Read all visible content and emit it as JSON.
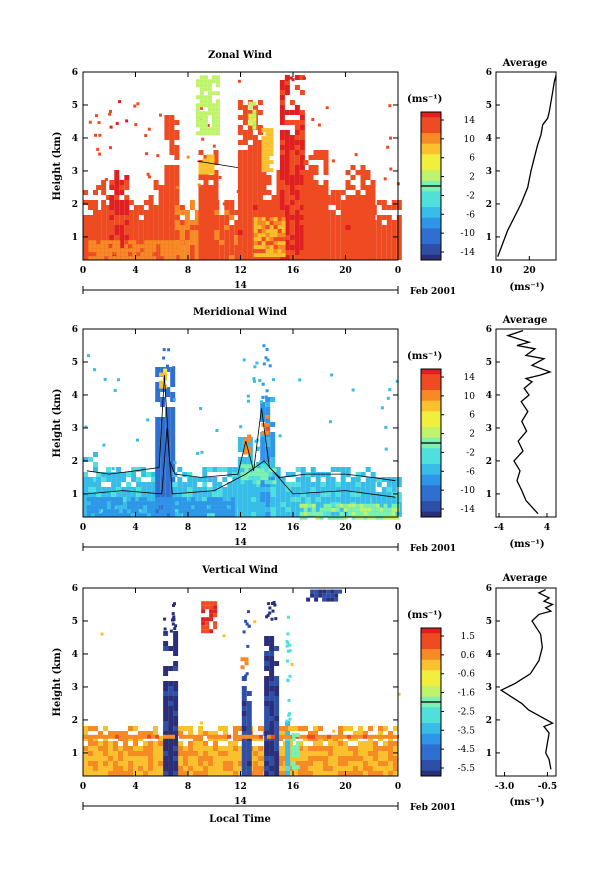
{
  "chart_data": [
    {
      "type": "heatmap",
      "title": "Zonal Wind",
      "ylabel": "Height (km)",
      "xlabel": "",
      "x_ticks": [
        "0",
        "4",
        "8",
        "12",
        "16",
        "20",
        "0"
      ],
      "x_lim": [
        0,
        24
      ],
      "y_ticks": [
        "1",
        "2",
        "3",
        "4",
        "5",
        "6"
      ],
      "y_lim": [
        0.3,
        6.0
      ],
      "date_label": "14",
      "date_suffix": "Feb 2001",
      "colorbar": {
        "unit": "(ms⁻¹)",
        "ticks": [
          "14",
          "10",
          "6",
          "2",
          "-2",
          "-6",
          "-10",
          "-14"
        ],
        "range": [
          -14,
          14
        ]
      },
      "field": {
        "base_value": 11,
        "base_top": 1.8,
        "columns": [
          {
            "x0": 0.0,
            "x1": 1.0,
            "top": 2.3,
            "value": 12
          },
          {
            "x0": 1.0,
            "x1": 2.0,
            "top": 2.6,
            "value": 12
          },
          {
            "x0": 2.0,
            "x1": 3.5,
            "top": 3.0,
            "value": 13
          },
          {
            "x0": 3.5,
            "x1": 5.0,
            "top": 2.1,
            "value": 12
          },
          {
            "x0": 5.0,
            "x1": 6.2,
            "top": 2.7,
            "value": 12
          },
          {
            "x0": 6.2,
            "x1": 7.0,
            "top": 4.6,
            "value": 12
          },
          {
            "x0": 7.0,
            "x1": 8.8,
            "top": 2.2,
            "value": 10
          },
          {
            "x0": 8.8,
            "x1": 10.0,
            "top": 3.6,
            "value": 12
          },
          {
            "x0": 10.0,
            "x1": 11.8,
            "top": 2.0,
            "value": 11
          },
          {
            "x0": 11.8,
            "x1": 13.6,
            "top": 5.0,
            "value": 12
          },
          {
            "x0": 13.6,
            "x1": 15.0,
            "top": 3.0,
            "value": 12
          },
          {
            "x0": 15.0,
            "x1": 16.8,
            "top": 5.8,
            "value": 13
          },
          {
            "x0": 16.8,
            "x1": 18.5,
            "top": 3.6,
            "value": 12
          },
          {
            "x0": 18.5,
            "x1": 20.0,
            "top": 2.4,
            "value": 12
          },
          {
            "x0": 20.0,
            "x1": 22.0,
            "top": 3.1,
            "value": 12
          },
          {
            "x0": 22.0,
            "x1": 24.0,
            "top": 2.0,
            "value": 12
          }
        ],
        "patches": [
          {
            "x0": 8.6,
            "x1": 10.2,
            "y0": 4.2,
            "y1": 5.9,
            "value": 2
          },
          {
            "x0": 8.8,
            "x1": 9.8,
            "y0": 3.0,
            "y1": 3.5,
            "value": 7
          },
          {
            "x0": 13.6,
            "x1": 14.4,
            "y0": 3.0,
            "y1": 4.3,
            "value": 7
          },
          {
            "x0": 12.6,
            "x1": 13.2,
            "y0": 4.3,
            "y1": 5.1,
            "value": 3
          },
          {
            "x0": 13.0,
            "x1": 15.2,
            "y0": 0.4,
            "y1": 1.6,
            "value": 8
          },
          {
            "x0": 0.4,
            "x1": 7.5,
            "y0": 0.4,
            "y1": 0.9,
            "value": 9
          }
        ]
      },
      "contours": [
        {
          "x": [
            8.7,
            11.8
          ],
          "y": [
            3.3,
            3.1
          ]
        }
      ]
    },
    {
      "type": "line",
      "title": "Average",
      "xlabel": "(ms⁻¹)",
      "x_ticks": [
        "10",
        "20"
      ],
      "x_lim": [
        10,
        28
      ],
      "y_lim": [
        0.3,
        6.0
      ],
      "y_ticks": [
        "1",
        "2",
        "3",
        "4",
        "5",
        "6"
      ],
      "series": [
        {
          "x": [
            10.5,
            12,
            13.5,
            15,
            16.5,
            17.5,
            19.5,
            20.5,
            21.5,
            22,
            22.5,
            23.5,
            24,
            25.5,
            26,
            26.5,
            27,
            27.5,
            28
          ],
          "y": [
            0.4,
            0.8,
            1.2,
            1.5,
            1.8,
            2.0,
            2.5,
            3.0,
            3.4,
            3.6,
            3.8,
            4.1,
            4.4,
            4.6,
            4.8,
            5.1,
            5.4,
            5.7,
            5.9
          ]
        }
      ]
    },
    {
      "type": "heatmap",
      "title": "Meridional Wind",
      "ylabel": "Height (km)",
      "xlabel": "",
      "x_ticks": [
        "0",
        "4",
        "8",
        "12",
        "16",
        "20",
        "0"
      ],
      "x_lim": [
        0,
        24
      ],
      "y_ticks": [
        "1",
        "2",
        "3",
        "4",
        "5",
        "6"
      ],
      "y_lim": [
        0.3,
        6.0
      ],
      "date_label": "14",
      "date_suffix": "Feb 2001",
      "colorbar": {
        "unit": "(ms⁻¹)",
        "ticks": [
          "14",
          "10",
          "6",
          "2",
          "-2",
          "-6",
          "-10",
          "-14"
        ],
        "range": [
          -14,
          14
        ]
      },
      "field": {
        "base_value": -4,
        "base_top": 1.3,
        "columns": [
          {
            "x0": 0.0,
            "x1": 1.0,
            "top": 2.2,
            "value": -4
          },
          {
            "x0": 1.0,
            "x1": 5.5,
            "top": 1.7,
            "value": -4
          },
          {
            "x0": 5.5,
            "x1": 6.8,
            "top": 4.8,
            "value": -9
          },
          {
            "x0": 6.8,
            "x1": 11.8,
            "top": 1.7,
            "value": -4
          },
          {
            "x0": 11.8,
            "x1": 12.8,
            "top": 2.7,
            "value": -5
          },
          {
            "x0": 12.8,
            "x1": 13.5,
            "top": 1.9,
            "value": -4
          },
          {
            "x0": 13.5,
            "x1": 14.3,
            "top": 3.8,
            "value": -6
          },
          {
            "x0": 14.3,
            "x1": 22.0,
            "top": 1.8,
            "value": -4
          },
          {
            "x0": 22.0,
            "x1": 24.0,
            "top": 1.4,
            "value": -4
          }
        ],
        "patches": [
          {
            "x0": 0.3,
            "x1": 11.5,
            "y0": 0.3,
            "y1": 0.9,
            "value": -7
          },
          {
            "x0": 16.5,
            "x1": 24.0,
            "y0": 0.3,
            "y1": 0.7,
            "value": 1
          },
          {
            "x0": 5.8,
            "x1": 6.4,
            "y0": 4.2,
            "y1": 4.8,
            "value": 6
          },
          {
            "x0": 12.2,
            "x1": 12.7,
            "y0": 2.2,
            "y1": 2.8,
            "value": 9
          },
          {
            "x0": 13.6,
            "x1": 14.2,
            "y0": 2.8,
            "y1": 3.4,
            "value": 10
          },
          {
            "x0": 12.0,
            "x1": 14.5,
            "y0": 1.4,
            "y1": 1.9,
            "value": -1
          }
        ]
      },
      "contours": [
        {
          "x": [
            0.3,
            2,
            4,
            5.8,
            6.2,
            6.6,
            7,
            9,
            11.8,
            12.4,
            13.0,
            13.6,
            14.2,
            15,
            17,
            20,
            22,
            23.8
          ],
          "y": [
            1.7,
            1.6,
            1.7,
            1.8,
            4.6,
            2.0,
            1.6,
            1.5,
            1.6,
            2.6,
            1.7,
            3.6,
            1.8,
            1.5,
            1.6,
            1.6,
            1.5,
            1.4
          ]
        },
        {
          "x": [
            0.3,
            3,
            6,
            6.4,
            6.8,
            10,
            12.4,
            13.8,
            16,
            20,
            23.8
          ],
          "y": [
            1.0,
            1.1,
            1.0,
            3.0,
            1.0,
            1.1,
            1.6,
            2.0,
            1.0,
            1.1,
            0.9
          ]
        }
      ]
    },
    {
      "type": "line",
      "title": "Average",
      "xlabel": "(ms⁻¹)",
      "x_ticks": [
        "-4",
        "4"
      ],
      "x_lim": [
        -4.5,
        5.5
      ],
      "y_lim": [
        0.3,
        6.0
      ],
      "y_ticks": [
        "1",
        "2",
        "3",
        "4",
        "5",
        "6"
      ],
      "series": [
        {
          "x": [
            2.5,
            0.5,
            -0.2,
            -1.0,
            -0.5,
            -1.5,
            0.0,
            -0.8,
            0.6,
            -0.2,
            0.8,
            -0.3,
            1.0,
            0.2,
            1.5,
            0.5,
            2.8,
            4.5,
            1.5,
            3.5,
            0.5,
            2.0,
            -1.0,
            1.0,
            -2.5,
            0.0
          ],
          "y": [
            0.4,
            0.8,
            1.1,
            1.4,
            1.7,
            2.0,
            2.3,
            2.6,
            2.9,
            3.2,
            3.5,
            3.8,
            4.0,
            4.2,
            4.4,
            4.5,
            4.6,
            4.7,
            4.9,
            5.1,
            5.2,
            5.4,
            5.5,
            5.6,
            5.8,
            5.95
          ]
        }
      ]
    },
    {
      "type": "heatmap",
      "title": "Vertical Wind",
      "ylabel": "Height (km)",
      "xlabel": "Local Time",
      "x_ticks": [
        "0",
        "4",
        "8",
        "12",
        "16",
        "20",
        "0"
      ],
      "x_lim": [
        0,
        24
      ],
      "y_ticks": [
        "1",
        "2",
        "3",
        "4",
        "5",
        "6"
      ],
      "y_lim": [
        0.3,
        6.0
      ],
      "date_label": "14",
      "date_suffix": "Feb 2001",
      "colorbar": {
        "unit": "(ms⁻¹)",
        "ticks": [
          "1.5",
          "0.6",
          "-0.6",
          "-1.6",
          "-2.5",
          "-3.5",
          "-4.5",
          "-5.5"
        ],
        "range": [
          -6,
          2
        ]
      },
      "field": {
        "base_value": 0.3,
        "base_top": 1.7,
        "columns": [
          {
            "x0": 0.0,
            "x1": 24.0,
            "top": 1.7,
            "value": 0.3
          },
          {
            "x0": 6.1,
            "x1": 7.0,
            "top": 4.6,
            "value": -5.8
          },
          {
            "x0": 12.1,
            "x1": 12.6,
            "top": 3.3,
            "value": -5.5
          },
          {
            "x0": 13.8,
            "x1": 14.6,
            "top": 4.4,
            "value": -5.7
          },
          {
            "x0": 15.4,
            "x1": 15.7,
            "top": 2.0,
            "value": -3.0
          }
        ],
        "patches": [
          {
            "x0": 0.0,
            "x1": 24.0,
            "y0": 1.45,
            "y1": 1.55,
            "value": 0.9
          },
          {
            "x0": 15.9,
            "x1": 16.3,
            "y0": 0.6,
            "y1": 1.6,
            "value": -2.0
          },
          {
            "x0": 12.0,
            "x1": 12.5,
            "y0": 3.6,
            "y1": 3.9,
            "value": 0.8
          },
          {
            "x0": 9.0,
            "x1": 10.0,
            "y0": 4.7,
            "y1": 5.6,
            "value": 1.6
          },
          {
            "x0": 17.0,
            "x1": 19.5,
            "y0": 5.7,
            "y1": 5.95,
            "value": -5.6
          }
        ]
      },
      "contours": []
    },
    {
      "type": "line",
      "title": "Average",
      "xlabel": "(ms⁻¹)",
      "x_ticks": [
        "-3.0",
        "-0.5"
      ],
      "x_lim": [
        -3.5,
        0.0
      ],
      "y_lim": [
        0.3,
        6.0
      ],
      "y_ticks": [
        "1",
        "2",
        "3",
        "4",
        "5",
        "6"
      ],
      "series": [
        {
          "x": [
            -0.3,
            -0.4,
            -0.6,
            -0.5,
            -0.4,
            -0.7,
            -0.2,
            -0.9,
            -1.6,
            -2.0,
            -2.6,
            -3.2,
            -2.4,
            -1.5,
            -1.0,
            -0.8,
            -0.9,
            -1.4,
            -1.0,
            -0.3,
            -0.6,
            -0.2,
            -0.7,
            -0.4,
            -1.0,
            -0.6
          ],
          "y": [
            0.5,
            0.8,
            1.0,
            1.3,
            1.6,
            1.8,
            1.9,
            2.1,
            2.3,
            2.5,
            2.7,
            2.9,
            3.1,
            3.4,
            3.8,
            4.2,
            4.6,
            5.0,
            5.2,
            5.3,
            5.4,
            5.5,
            5.6,
            5.7,
            5.85,
            5.95
          ]
        }
      ]
    }
  ]
}
